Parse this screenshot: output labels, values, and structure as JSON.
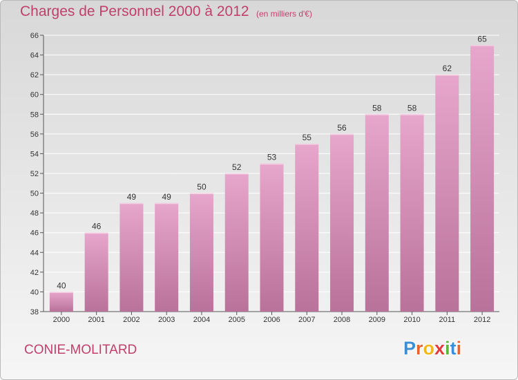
{
  "header": {
    "title": "Charges de Personnel 2000 à 2012",
    "subtitle": "(en milliers d'€)"
  },
  "footer": {
    "commune": "CONIE-MOLITARD",
    "logo_letters": [
      {
        "char": "P",
        "color": "#3a8fd6"
      },
      {
        "char": "r",
        "color": "#e8642c"
      },
      {
        "char": "o",
        "color": "#f0b81c"
      },
      {
        "char": "x",
        "color": "#e23b3b"
      },
      {
        "char": "i",
        "color": "#5cb83a"
      },
      {
        "char": "t",
        "color": "#3a8fd6"
      },
      {
        "char": "i",
        "color": "#e8642c"
      }
    ]
  },
  "colors": {
    "bar_top": "#e7a6cb",
    "bar_bottom": "#b9729a",
    "grid": "#ffffff",
    "text_accent": "#c0406a"
  },
  "chart_data": {
    "type": "bar",
    "title": "Charges de Personnel 2000 à 2012",
    "subtitle": "(en milliers d'€)",
    "xlabel": "",
    "ylabel": "",
    "categories": [
      "2000",
      "2001",
      "2002",
      "2003",
      "2004",
      "2005",
      "2006",
      "2007",
      "2008",
      "2009",
      "2010",
      "2011",
      "2012"
    ],
    "values": [
      40,
      46,
      49,
      49,
      50,
      52,
      53,
      55,
      56,
      58,
      58,
      62,
      65
    ],
    "ylim": [
      38,
      66
    ],
    "yticks": [
      38,
      40,
      42,
      44,
      46,
      48,
      50,
      52,
      54,
      56,
      58,
      60,
      62,
      64,
      66
    ],
    "grid": true,
    "data_labels": true
  }
}
